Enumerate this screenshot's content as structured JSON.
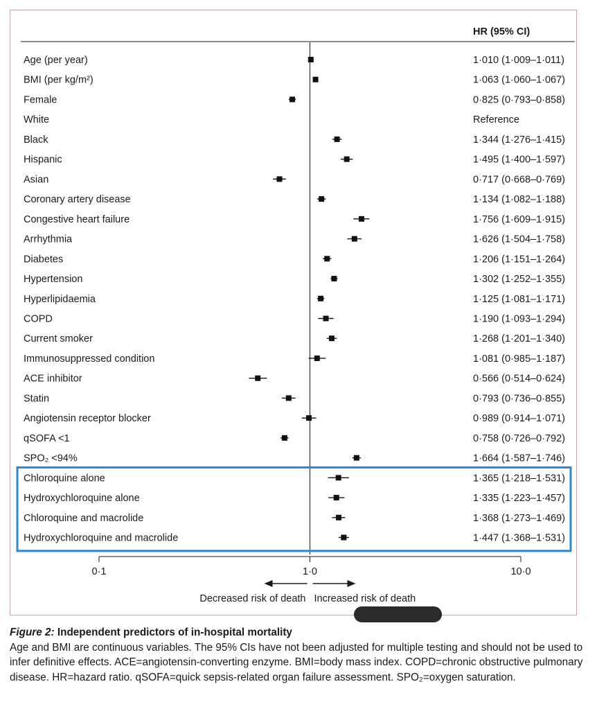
{
  "chart_data": {
    "type": "forest",
    "column_header": "HR (95% CI)",
    "x_scale": "log",
    "xlim": [
      0.1,
      10.0
    ],
    "reference_line": 1.0,
    "ticks": [
      {
        "value": 0.1,
        "label": "0·1"
      },
      {
        "value": 1.0,
        "label": "1·0"
      },
      {
        "value": 10.0,
        "label": "10·0"
      }
    ],
    "arrow_left_label": "Decreased risk of death",
    "arrow_right_label": "Increased risk of death",
    "rows": [
      {
        "label": "Age (per year)",
        "hr": 1.01,
        "lo": 1.009,
        "hi": 1.011,
        "text": "1·010 (1·009–1·011)"
      },
      {
        "label": "BMI (per kg/m²)",
        "hr": 1.063,
        "lo": 1.06,
        "hi": 1.067,
        "text": "1·063 (1·060–1·067)"
      },
      {
        "label": "Female",
        "hr": 0.825,
        "lo": 0.793,
        "hi": 0.858,
        "text": "0·825 (0·793–0·858)"
      },
      {
        "label": "White",
        "hr": null,
        "lo": null,
        "hi": null,
        "text": "Reference"
      },
      {
        "label": "Black",
        "hr": 1.344,
        "lo": 1.276,
        "hi": 1.415,
        "text": "1·344 (1·276–1·415)"
      },
      {
        "label": "Hispanic",
        "hr": 1.495,
        "lo": 1.4,
        "hi": 1.597,
        "text": "1·495 (1·400–1·597)"
      },
      {
        "label": "Asian",
        "hr": 0.717,
        "lo": 0.668,
        "hi": 0.769,
        "text": "0·717 (0·668–0·769)"
      },
      {
        "label": "Coronary artery disease",
        "hr": 1.134,
        "lo": 1.082,
        "hi": 1.188,
        "text": "1·134 (1·082–1·188)"
      },
      {
        "label": "Congestive heart failure",
        "hr": 1.756,
        "lo": 1.609,
        "hi": 1.915,
        "text": "1·756 (1·609–1·915)"
      },
      {
        "label": "Arrhythmia",
        "hr": 1.626,
        "lo": 1.504,
        "hi": 1.758,
        "text": "1·626 (1·504–1·758)"
      },
      {
        "label": "Diabetes",
        "hr": 1.206,
        "lo": 1.151,
        "hi": 1.264,
        "text": "1·206 (1·151–1·264)"
      },
      {
        "label": "Hypertension",
        "hr": 1.302,
        "lo": 1.252,
        "hi": 1.355,
        "text": "1·302 (1·252–1·355)"
      },
      {
        "label": "Hyperlipidaemia",
        "hr": 1.125,
        "lo": 1.081,
        "hi": 1.171,
        "text": "1·125 (1·081–1·171)"
      },
      {
        "label": "COPD",
        "hr": 1.19,
        "lo": 1.093,
        "hi": 1.294,
        "text": "1·190 (1·093–1·294)"
      },
      {
        "label": "Current smoker",
        "hr": 1.268,
        "lo": 1.201,
        "hi": 1.34,
        "text": "1·268 (1·201–1·340)"
      },
      {
        "label": "Immunosuppressed condition",
        "hr": 1.081,
        "lo": 0.985,
        "hi": 1.187,
        "text": "1·081 (0·985–1·187)"
      },
      {
        "label": "ACE inhibitor",
        "hr": 0.566,
        "lo": 0.514,
        "hi": 0.624,
        "text": "0·566 (0·514–0·624)"
      },
      {
        "label": "Statin",
        "hr": 0.793,
        "lo": 0.736,
        "hi": 0.855,
        "text": "0·793 (0·736–0·855)"
      },
      {
        "label": "Angiotensin receptor blocker",
        "hr": 0.989,
        "lo": 0.914,
        "hi": 1.071,
        "text": "0·989 (0·914–1·071)"
      },
      {
        "label": "qSOFA <1",
        "hr": 0.758,
        "lo": 0.726,
        "hi": 0.792,
        "text": "0·758 (0·726–0·792)"
      },
      {
        "label": "SPO₂ <94%",
        "hr": 1.664,
        "lo": 1.587,
        "hi": 1.746,
        "text": "1·664 (1·587–1·746)"
      },
      {
        "label": "Chloroquine alone",
        "hr": 1.365,
        "lo": 1.218,
        "hi": 1.531,
        "text": "1·365 (1·218–1·531)",
        "highlight": true
      },
      {
        "label": "Hydroxychloroquine alone",
        "hr": 1.335,
        "lo": 1.223,
        "hi": 1.457,
        "text": "1·335 (1·223–1·457)",
        "highlight": true
      },
      {
        "label": "Chloroquine and macrolide",
        "hr": 1.368,
        "lo": 1.273,
        "hi": 1.469,
        "text": "1·368 (1·273–1·469)",
        "highlight": true
      },
      {
        "label": "Hydroxychloroquine and macrolide",
        "hr": 1.447,
        "lo": 1.368,
        "hi": 1.531,
        "text": "1·447 (1·368–1·531)",
        "highlight": true
      }
    ]
  },
  "colors": {
    "highlight_box": "#2b86d6",
    "marker": "#111111",
    "panel_border": "#c9a4ac"
  },
  "caption": {
    "figure_label": "Figure 2:",
    "figure_title": " Independent predictors of in-hospital mortality",
    "body": "Age and BMI are continuous variables. The 95% CIs have not been adjusted for multiple testing and should not be used to infer definitive effects. ACE=angiotensin-converting enzyme. BMI=body mass index. COPD=chronic obstructive pulmonary disease. HR=hazard ratio. qSOFA=quick sepsis-related organ failure assessment. SPO₂=oxygen saturation."
  }
}
